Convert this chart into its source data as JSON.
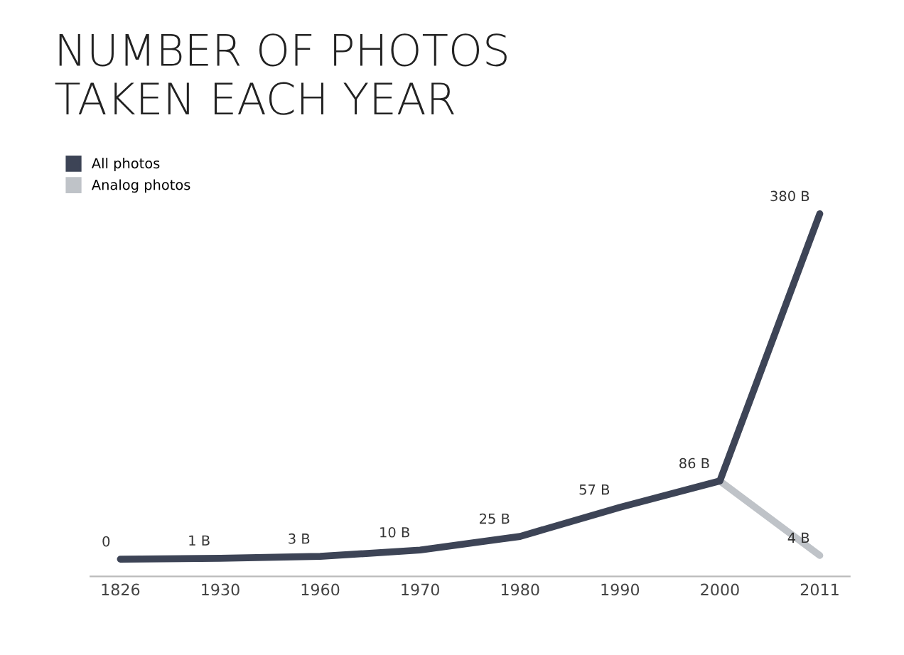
{
  "chart_data": {
    "type": "line",
    "title": "NUMBER OF PHOTOS\nTAKEN EACH YEAR",
    "categories": [
      "1826",
      "1930",
      "1960",
      "1970",
      "1980",
      "1990",
      "2000",
      "2011"
    ],
    "series": [
      {
        "name": "All photos",
        "color": "#3d4456",
        "values": [
          0,
          1,
          3,
          10,
          25,
          57,
          86,
          380
        ],
        "value_labels": [
          "0",
          "1 B",
          "3 B",
          "10 B",
          "25 B",
          "57 B",
          "86 B",
          "380 B"
        ]
      },
      {
        "name": "Analog photos",
        "color": "#bfc3c8",
        "values": [
          null,
          null,
          null,
          null,
          null,
          null,
          86,
          4
        ],
        "value_labels": [
          null,
          null,
          null,
          null,
          null,
          null,
          null,
          "4 B"
        ]
      }
    ],
    "legend": "top left",
    "grid": false,
    "tick_labels": "x"
  }
}
